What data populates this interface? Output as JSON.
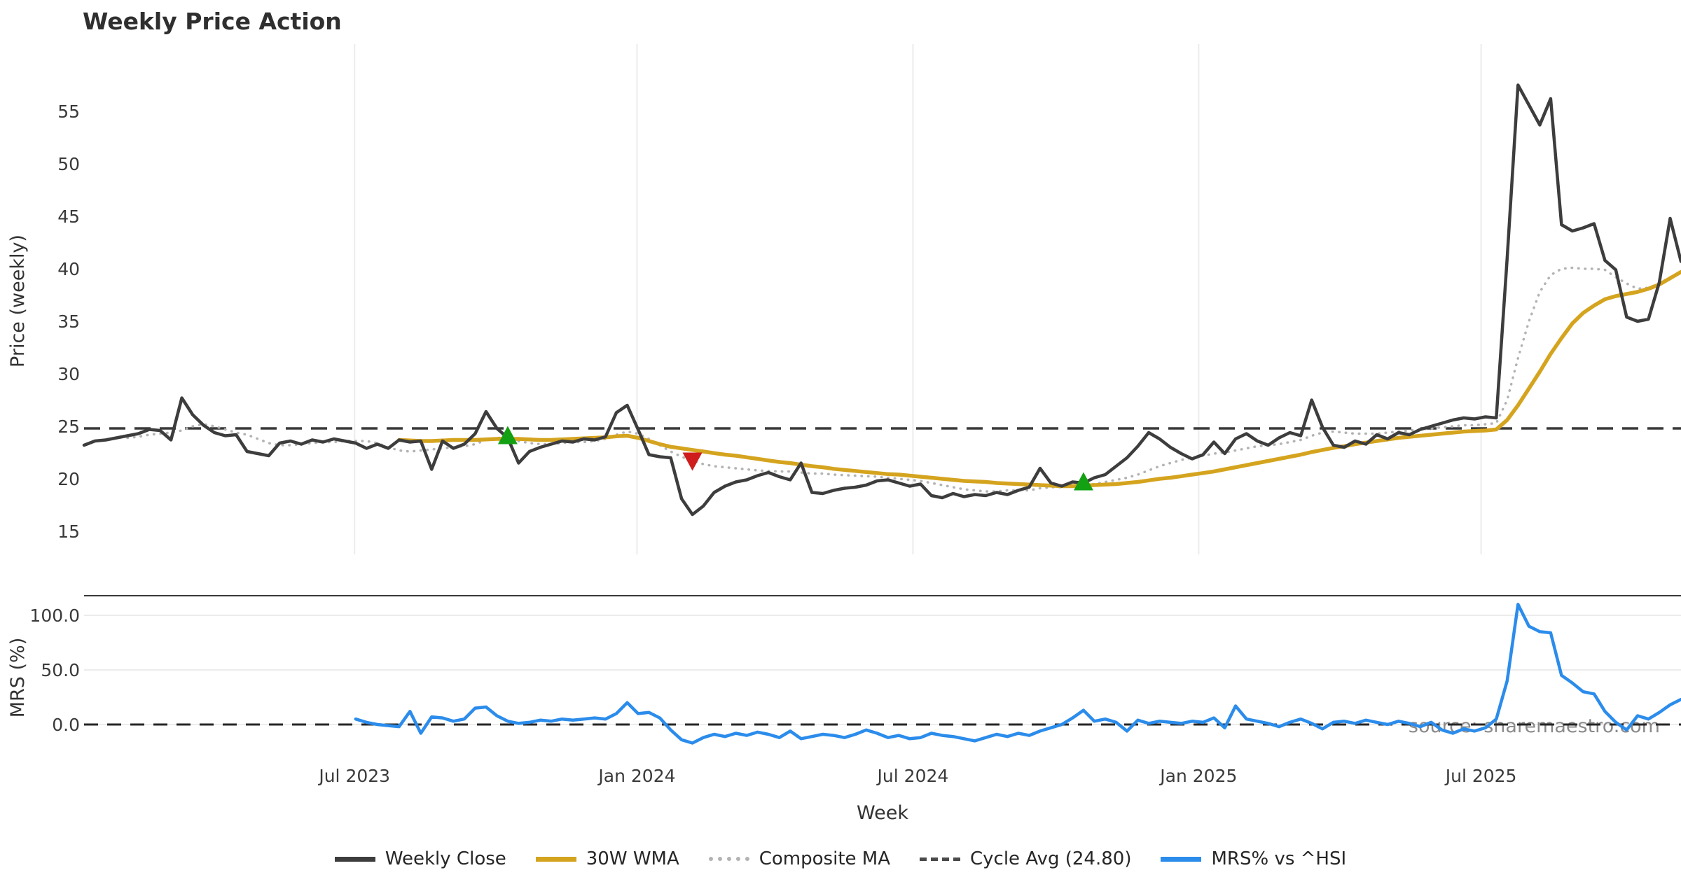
{
  "title": "Weekly Price Action",
  "watermark": "source: sharemaestro.com",
  "price_panel": {
    "ylabel": "Price (weekly)"
  },
  "mrs_panel": {
    "ylabel": "MRS (%)"
  },
  "x_axis": {
    "label": "Week",
    "ticks": [
      {
        "label": "Jul 2023",
        "week": 24.9
      },
      {
        "label": "Jan 2024",
        "week": 50.9
      },
      {
        "label": "Jul 2024",
        "week": 76.3
      },
      {
        "label": "Jan 2025",
        "week": 102.6
      },
      {
        "label": "Jul 2025",
        "week": 128.6
      }
    ]
  },
  "legend": [
    {
      "label": "Weekly Close",
      "color": "#3d3d3d",
      "style": "solid"
    },
    {
      "label": "30W WMA",
      "color": "#d5a41f",
      "style": "solid"
    },
    {
      "label": "Composite MA",
      "color": "#b3b3b3",
      "style": "dotted"
    },
    {
      "label": "Cycle Avg (24.80)",
      "color": "#4a4a4a",
      "style": "dashed"
    },
    {
      "label": "MRS% vs ^HSI",
      "color": "#2b8ceb",
      "style": "solid"
    }
  ],
  "weeks_total": 148,
  "chart_data": [
    {
      "type": "line",
      "panel": "price",
      "title": "Weekly Price Action",
      "ylabel": "Price (weekly)",
      "ylim": [
        12.8,
        61.4
      ],
      "yticks": [
        55,
        50,
        45,
        40,
        35,
        30,
        25,
        20,
        15
      ],
      "grid": "vertical-only",
      "cycle_avg": 24.8,
      "series": [
        {
          "name": "Weekly Close",
          "color": "#3d3d3d",
          "style": "solid",
          "start_week": 0,
          "values": [
            23.2,
            23.6,
            23.7,
            23.9,
            24.1,
            24.3,
            24.7,
            24.6,
            23.7,
            27.7,
            26.1,
            25.1,
            24.4,
            24.1,
            24.2,
            22.6,
            22.4,
            22.2,
            23.4,
            23.6,
            23.3,
            23.7,
            23.5,
            23.8,
            23.6,
            23.4,
            22.9,
            23.3,
            22.9,
            23.7,
            23.5,
            23.6,
            20.9,
            23.6,
            22.9,
            23.3,
            24.3,
            26.4,
            24.8,
            23.9,
            21.5,
            22.6,
            23.0,
            23.3,
            23.6,
            23.5,
            23.8,
            23.7,
            24.0,
            26.3,
            27.0,
            24.7,
            22.3,
            22.1,
            22.0,
            18.1,
            16.6,
            17.4,
            18.7,
            19.3,
            19.7,
            19.9,
            20.3,
            20.6,
            20.2,
            19.9,
            21.5,
            18.7,
            18.6,
            18.9,
            19.1,
            19.2,
            19.4,
            19.8,
            19.9,
            19.6,
            19.3,
            19.5,
            18.4,
            18.2,
            18.6,
            18.3,
            18.5,
            18.4,
            18.7,
            18.5,
            18.9,
            19.2,
            21.0,
            19.6,
            19.3,
            19.7,
            19.6,
            20.1,
            20.4,
            21.2,
            22.0,
            23.1,
            24.4,
            23.8,
            23.0,
            22.4,
            21.9,
            22.3,
            23.5,
            22.4,
            23.8,
            24.3,
            23.6,
            23.2,
            23.9,
            24.4,
            24.1,
            27.5,
            24.9,
            23.2,
            23.0,
            23.6,
            23.3,
            24.2,
            23.8,
            24.4,
            24.2,
            24.7,
            25.0,
            25.3,
            25.6,
            25.8,
            25.7,
            25.9,
            25.8,
            41.0,
            57.5,
            55.6,
            53.7,
            56.2,
            44.2,
            43.6,
            43.9,
            44.3,
            40.8,
            39.9,
            35.4,
            35.0,
            35.2,
            38.7,
            44.8,
            40.7
          ]
        },
        {
          "name": "30W WMA",
          "color": "#d5a41f",
          "style": "solid",
          "start_week": 29,
          "values": [
            23.7,
            23.65,
            23.6,
            23.6,
            23.65,
            23.7,
            23.7,
            23.7,
            23.75,
            23.8,
            23.8,
            23.8,
            23.75,
            23.7,
            23.7,
            23.75,
            23.8,
            23.85,
            23.9,
            23.95,
            24.05,
            24.1,
            23.9,
            23.6,
            23.3,
            23.05,
            22.9,
            22.75,
            22.6,
            22.45,
            22.3,
            22.2,
            22.05,
            21.9,
            21.75,
            21.6,
            21.5,
            21.35,
            21.2,
            21.1,
            20.95,
            20.85,
            20.75,
            20.65,
            20.55,
            20.45,
            20.4,
            20.3,
            20.2,
            20.1,
            20.0,
            19.9,
            19.8,
            19.75,
            19.7,
            19.6,
            19.55,
            19.5,
            19.45,
            19.4,
            19.35,
            19.3,
            19.3,
            19.35,
            19.4,
            19.45,
            19.5,
            19.6,
            19.7,
            19.85,
            20.0,
            20.1,
            20.25,
            20.4,
            20.55,
            20.7,
            20.9,
            21.1,
            21.3,
            21.5,
            21.7,
            21.9,
            22.1,
            22.3,
            22.55,
            22.75,
            22.95,
            23.1,
            23.3,
            23.45,
            23.6,
            23.75,
            23.9,
            24.0,
            24.1,
            24.2,
            24.3,
            24.4,
            24.5,
            24.55,
            24.6,
            24.7,
            25.6,
            27.0,
            28.6,
            30.2,
            31.9,
            33.4,
            34.8,
            35.8,
            36.5,
            37.1,
            37.4,
            37.6,
            37.8,
            38.1,
            38.5,
            39.1,
            39.7
          ]
        },
        {
          "name": "Composite MA",
          "color": "#b3b3b3",
          "style": "dotted",
          "start_week": 4,
          "values": [
            23.9,
            24.0,
            24.2,
            24.3,
            24.4,
            24.6,
            25.0,
            25.2,
            25.0,
            24.7,
            24.4,
            24.2,
            23.8,
            23.4,
            23.2,
            23.2,
            23.3,
            23.4,
            23.5,
            23.5,
            23.6,
            23.6,
            23.6,
            23.4,
            23.0,
            22.7,
            22.6,
            22.7,
            22.8,
            22.9,
            23.0,
            23.1,
            23.3,
            23.7,
            23.9,
            23.9,
            23.6,
            23.4,
            23.3,
            23.3,
            23.4,
            23.5,
            23.5,
            23.6,
            23.8,
            24.2,
            24.5,
            24.3,
            23.8,
            23.2,
            22.6,
            22.1,
            21.7,
            21.4,
            21.2,
            21.1,
            21.0,
            20.9,
            20.8,
            20.75,
            20.7,
            20.7,
            20.6,
            20.5,
            20.5,
            20.4,
            20.35,
            20.3,
            20.25,
            20.2,
            20.1,
            20.0,
            19.9,
            19.8,
            19.6,
            19.4,
            19.2,
            19.0,
            18.9,
            18.8,
            18.8,
            18.9,
            18.9,
            18.9,
            19.1,
            19.2,
            19.2,
            19.3,
            19.4,
            19.5,
            19.7,
            19.9,
            20.1,
            20.4,
            20.8,
            21.2,
            21.5,
            21.8,
            22.0,
            22.2,
            22.4,
            22.5,
            22.7,
            22.9,
            23.1,
            23.2,
            23.3,
            23.5,
            23.7,
            24.1,
            24.4,
            24.5,
            24.4,
            24.3,
            24.3,
            24.3,
            24.4,
            24.5,
            24.6,
            24.7,
            24.8,
            24.9,
            25.0,
            25.1,
            25.1,
            25.2,
            25.3,
            27.5,
            31.5,
            35.0,
            37.8,
            39.4,
            40.0,
            40.1,
            40.0,
            40.0,
            39.9,
            39.2,
            38.6,
            38.1,
            38.2,
            38.6,
            39.2,
            39.6
          ]
        }
      ],
      "markers": [
        {
          "shape": "triangle-up",
          "color": "#13a113",
          "week": 39,
          "value": 24.1
        },
        {
          "shape": "triangle-down",
          "color": "#cf1d1d",
          "week": 56,
          "value": 21.7
        },
        {
          "shape": "triangle-up",
          "color": "#13a113",
          "week": 92,
          "value": 19.7
        }
      ]
    },
    {
      "type": "line",
      "panel": "mrs",
      "ylabel": "MRS (%)",
      "ylim": [
        -35,
        117
      ],
      "yticks": [
        {
          "label": "100.0",
          "value": 100
        },
        {
          "label": "50.0",
          "value": 50
        },
        {
          "label": "0.0",
          "value": 0
        }
      ],
      "zero_line": 0,
      "series": [
        {
          "name": "MRS% vs ^HSI",
          "color": "#2b8ceb",
          "style": "solid",
          "start_week": 25,
          "values": [
            5,
            2,
            0,
            -1,
            -2,
            12,
            -8,
            7,
            6,
            3,
            5,
            15,
            16,
            8,
            3,
            1,
            2,
            4,
            3,
            5,
            4,
            5,
            6,
            5,
            10,
            20,
            10,
            11,
            6,
            -5,
            -14,
            -17,
            -12,
            -9,
            -11,
            -8,
            -10,
            -7,
            -9,
            -12,
            -6,
            -13,
            -11,
            -9,
            -10,
            -12,
            -9,
            -5,
            -8,
            -12,
            -10,
            -13,
            -12,
            -8,
            -10,
            -11,
            -13,
            -15,
            -12,
            -9,
            -11,
            -8,
            -10,
            -6,
            -3,
            0,
            6,
            13,
            3,
            5,
            2,
            -6,
            4,
            1,
            3,
            2,
            1,
            3,
            2,
            6,
            -3,
            17,
            5,
            3,
            1,
            -2,
            2,
            5,
            1,
            -4,
            2,
            3,
            1,
            4,
            2,
            0,
            3,
            1,
            -2,
            2,
            -5,
            -8,
            -4,
            -6,
            -3,
            5,
            40,
            110,
            90,
            85,
            84,
            45,
            38,
            30,
            28,
            12,
            2,
            -5,
            8,
            5,
            11,
            18,
            23
          ]
        }
      ]
    }
  ]
}
